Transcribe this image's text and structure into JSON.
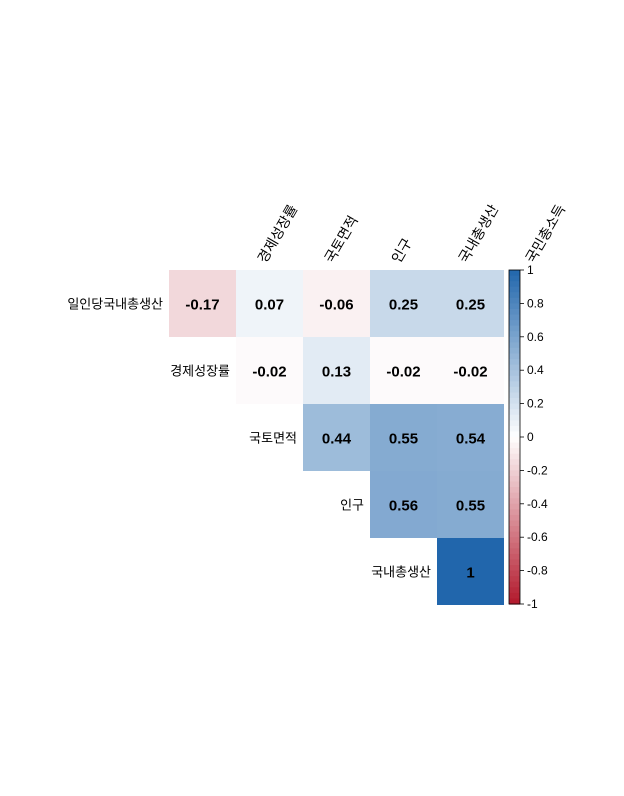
{
  "chart_data": {
    "type": "heatmap",
    "title": "",
    "subtitle": "",
    "column_labels": [
      "경제성장률",
      "국토면적",
      "인구",
      "국내총생산",
      "국민총소득"
    ],
    "row_labels": [
      "일인당국내총생산",
      "경제성장률",
      "국토면적",
      "인구",
      "국내총생산"
    ],
    "matrix": [
      [
        -0.17,
        0.07,
        -0.06,
        0.25,
        0.25
      ],
      [
        null,
        -0.02,
        0.13,
        -0.02,
        -0.02
      ],
      [
        null,
        null,
        0.44,
        0.55,
        0.54
      ],
      [
        null,
        null,
        null,
        0.56,
        0.55
      ],
      [
        null,
        null,
        null,
        null,
        1
      ]
    ],
    "value_labels": [
      [
        "-0.17",
        "0.07",
        "-0.06",
        "0.25",
        "0.25"
      ],
      [
        null,
        "-0.02",
        "0.13",
        "-0.02",
        "-0.02"
      ],
      [
        null,
        null,
        "0.44",
        "0.55",
        "0.54"
      ],
      [
        null,
        null,
        null,
        "0.56",
        "0.55"
      ],
      [
        null,
        null,
        null,
        null,
        "1"
      ]
    ],
    "color_scale": {
      "min": -1,
      "max": 1,
      "negative_color": "#b2182b",
      "neutral_color": "#ffffff",
      "positive_color": "#2166ac",
      "ticks": [
        1,
        0.8,
        0.6,
        0.4,
        0.2,
        0,
        -0.2,
        -0.4,
        -0.6,
        -0.8,
        -1
      ],
      "tick_labels": [
        "1",
        "0.8",
        "0.6",
        "0.4",
        "0.2",
        "0",
        "-0.2",
        "-0.4",
        "-0.6",
        "-0.8",
        "-1"
      ]
    },
    "legend_position": "right"
  }
}
